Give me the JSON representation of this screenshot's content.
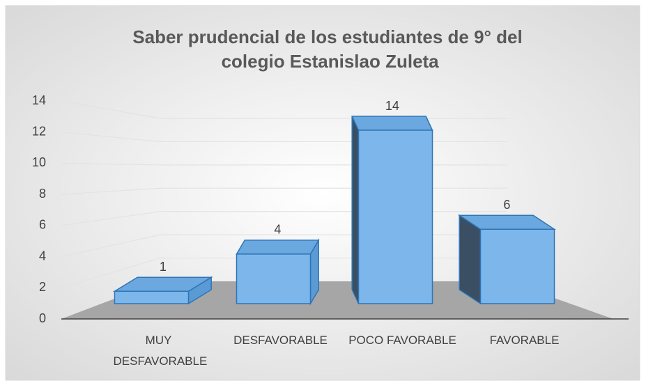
{
  "chart_data": {
    "type": "bar3d",
    "title": "Saber prudencial de los estudiantes de 9° del colegio Estanislao Zuleta",
    "categories": [
      "MUY DESFAVORABLE",
      "DESFAVORABLE",
      "POCO FAVORABLE",
      "FAVORABLE"
    ],
    "values": [
      1,
      4,
      14,
      6
    ],
    "color": "#7db6ea",
    "ylim": [
      0,
      14
    ],
    "yticks": [
      0,
      2,
      4,
      6,
      8,
      10,
      12,
      14
    ],
    "grid": true
  }
}
